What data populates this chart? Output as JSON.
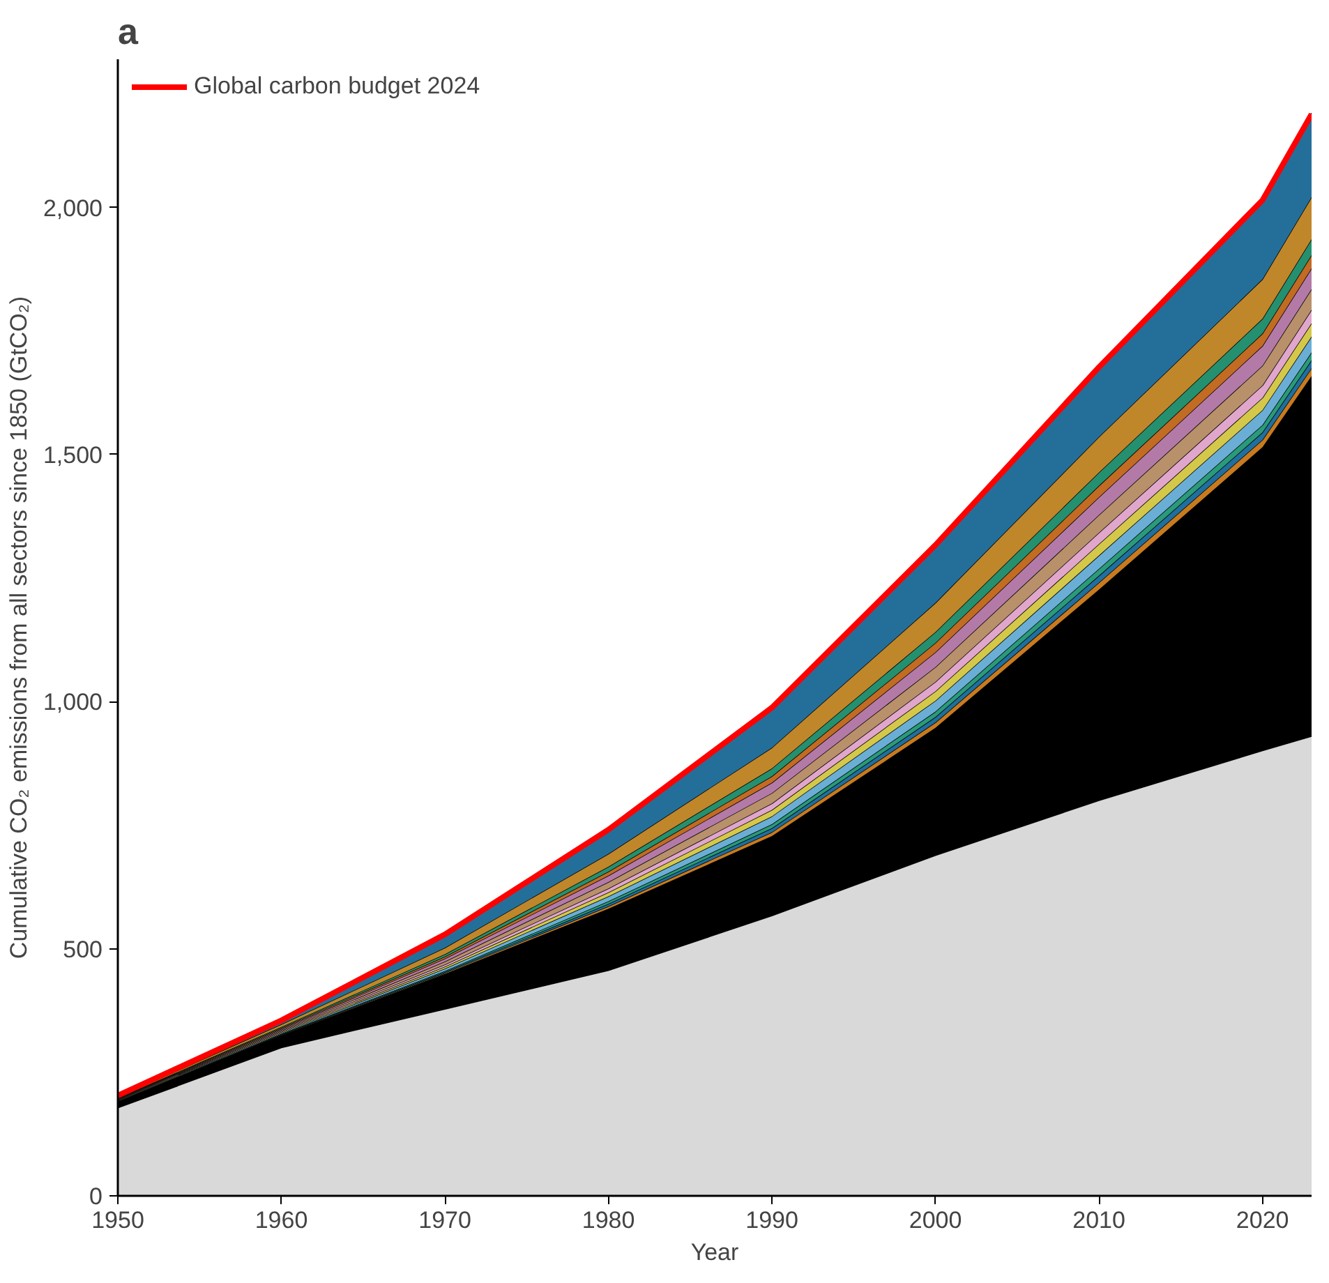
{
  "chart_data": {
    "type": "area",
    "stacked": true,
    "annotations": [
      "a"
    ],
    "xlabel": "Year",
    "ylabel": "Cumulative CO₂ emissions from all sectors since 1850 (GtCO₂)",
    "x": [
      1950,
      1960,
      1970,
      1980,
      1990,
      2000,
      2010,
      2020,
      2023
    ],
    "xlim": [
      1950,
      2023
    ],
    "xticks": [
      1950,
      1960,
      1970,
      1980,
      1990,
      2000,
      2010,
      2020
    ],
    "ylim": [
      0,
      2300
    ],
    "yticks": [
      0,
      500,
      {
        "value": 1000,
        "label": "1,000"
      },
      {
        "value": 1500,
        "label": "1,500"
      },
      {
        "value": 2000,
        "label": "2,000"
      }
    ],
    "grid": false,
    "legend": "top left",
    "series": [
      {
        "color": "#d9d9d9",
        "values": [
          178,
          300,
          378,
          456,
          567,
          689,
          800,
          901,
          930
        ]
      },
      {
        "color": "#000000",
        "values": [
          13,
          25,
          71,
          125,
          161,
          258,
          427,
          614,
          729
        ]
      },
      {
        "color": "#c87a1e",
        "values": [
          0,
          1,
          2,
          5,
          8,
          11,
          14,
          15,
          16
        ]
      },
      {
        "color": "#1f6f9f",
        "values": [
          0,
          1,
          2,
          5,
          8,
          11,
          14,
          15,
          16
        ]
      },
      {
        "color": "#2a9a78",
        "values": [
          0,
          1,
          2,
          5,
          8,
          11,
          14,
          15,
          16
        ]
      },
      {
        "color": "#6aaed6",
        "values": [
          1,
          2,
          5,
          10,
          16,
          22,
          27,
          30,
          32
        ]
      },
      {
        "color": "#d4c84a",
        "values": [
          1,
          2,
          4,
          8,
          13,
          19,
          23,
          25,
          27
        ]
      },
      {
        "color": "#e0a6cc",
        "values": [
          1,
          2,
          4,
          8,
          13,
          19,
          23,
          25,
          27
        ]
      },
      {
        "color": "#b8906a",
        "values": [
          1,
          2,
          6,
          13,
          21,
          30,
          36,
          40,
          42
        ]
      },
      {
        "color": "#b37aa8",
        "values": [
          1,
          2,
          6,
          13,
          21,
          30,
          36,
          40,
          42
        ]
      },
      {
        "color": "#c26b22",
        "values": [
          1,
          2,
          4,
          8,
          13,
          19,
          23,
          25,
          27
        ]
      },
      {
        "color": "#24906f",
        "values": [
          1,
          2,
          5,
          10,
          16,
          22,
          27,
          30,
          32
        ]
      },
      {
        "color": "#c0862a",
        "values": [
          2,
          5,
          13,
          26,
          42,
          59,
          72,
          80,
          85
        ]
      },
      {
        "color": "#246f9a",
        "values": [
          4,
          10,
          26,
          51,
          83,
          118,
          144,
          160,
          170
        ]
      },
      {
        "type": "line",
        "name": "Global carbon budget 2024",
        "color": "#ff0000",
        "values": [
          203,
          355,
          529,
          741,
          988,
          1317,
          1677,
          2015,
          2189
        ]
      }
    ]
  }
}
